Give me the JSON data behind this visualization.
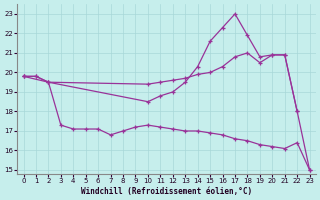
{
  "xlabel": "Windchill (Refroidissement éolien,°C)",
  "background_color": "#c6eeec",
  "grid_color": "#a8d8d8",
  "line_color": "#993399",
  "xlim": [
    -0.5,
    23.5
  ],
  "ylim": [
    14.8,
    23.5
  ],
  "yticks": [
    15,
    16,
    17,
    18,
    19,
    20,
    21,
    22,
    23
  ],
  "xticks": [
    0,
    1,
    2,
    3,
    4,
    5,
    6,
    7,
    8,
    9,
    10,
    11,
    12,
    13,
    14,
    15,
    16,
    17,
    18,
    19,
    20,
    21,
    22,
    23
  ],
  "line_top_x": [
    0,
    1,
    2,
    10,
    11,
    12,
    13,
    14,
    15,
    16,
    17,
    18,
    19,
    20,
    21,
    22,
    23
  ],
  "line_top_y": [
    19.8,
    19.8,
    19.5,
    18.5,
    18.8,
    19.0,
    19.5,
    20.3,
    21.6,
    22.3,
    23.0,
    21.9,
    20.8,
    20.9,
    20.9,
    18.0,
    15.0
  ],
  "line_mid_x": [
    0,
    1,
    2,
    10,
    11,
    12,
    13,
    14,
    15,
    16,
    17,
    18,
    19,
    20,
    21,
    22
  ],
  "line_mid_y": [
    19.8,
    19.8,
    19.5,
    19.4,
    19.5,
    19.6,
    19.7,
    19.9,
    20.0,
    20.3,
    20.8,
    21.0,
    20.5,
    20.9,
    20.9,
    18.0
  ],
  "line_bot_x": [
    0,
    2,
    3,
    4,
    5,
    6,
    7,
    8,
    9,
    10,
    11,
    12,
    13,
    14,
    15,
    16,
    17,
    18,
    19,
    20,
    21,
    22,
    23
  ],
  "line_bot_y": [
    19.8,
    19.5,
    17.3,
    17.1,
    17.1,
    17.1,
    16.8,
    17.0,
    17.2,
    17.3,
    17.2,
    17.1,
    17.0,
    17.0,
    16.9,
    16.8,
    16.6,
    16.5,
    16.3,
    16.2,
    16.1,
    16.4,
    15.0
  ]
}
